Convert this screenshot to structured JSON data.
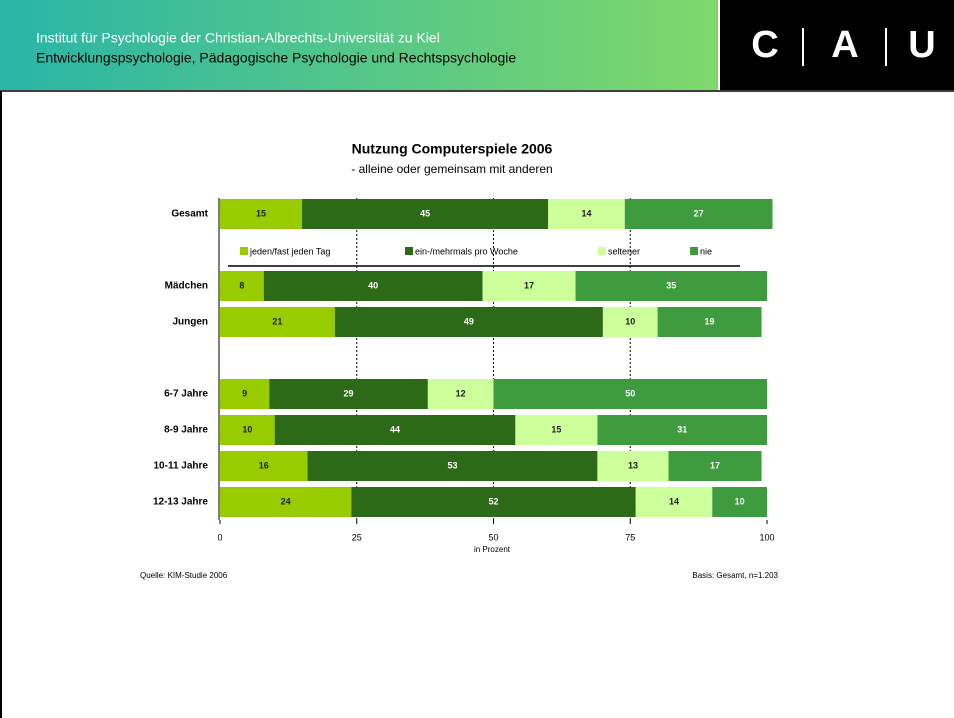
{
  "header": {
    "line1": "Institut für Psychologie der Christian-Albrechts-Universität zu Kiel",
    "line2": "Entwicklungspsychologie, Pädagogische Psychologie und Rechtspsychologie",
    "logo": [
      "C",
      "A",
      "U"
    ]
  },
  "chart_data": {
    "type": "stacked_bar_horizontal",
    "title": "Nutzung Computerspiele 2006",
    "subtitle": "- alleine oder gemeinsam mit anderen",
    "categories": [
      "Gesamt",
      null,
      "Mädchen",
      "Jungen",
      null,
      "6-7 Jahre",
      "8-9 Jahre",
      "10-11 Jahre",
      "12-13 Jahre"
    ],
    "series": [
      {
        "name": "jeden/fast jeden Tag",
        "color": "#99cc00",
        "values": [
          15,
          null,
          8,
          21,
          null,
          9,
          10,
          16,
          24
        ]
      },
      {
        "name": "ein-/mehrmals pro Woche",
        "color": "#2d6a17",
        "values": [
          45,
          null,
          40,
          49,
          null,
          29,
          44,
          53,
          52
        ]
      },
      {
        "name": "seltener",
        "color": "#ccff99",
        "values": [
          14,
          null,
          17,
          10,
          null,
          12,
          15,
          13,
          14
        ]
      },
      {
        "name": "nie",
        "color": "#3e9c3e",
        "values": [
          27,
          null,
          35,
          19,
          null,
          50,
          31,
          17,
          10
        ]
      }
    ],
    "xlim": [
      0,
      100
    ],
    "xticks": [
      0,
      25,
      50,
      75,
      100
    ],
    "xlabel": "in Prozent",
    "grid": true,
    "source": "Quelle: KIM-Studie 2006",
    "note": "Basis: Gesamt, n=1.203"
  }
}
